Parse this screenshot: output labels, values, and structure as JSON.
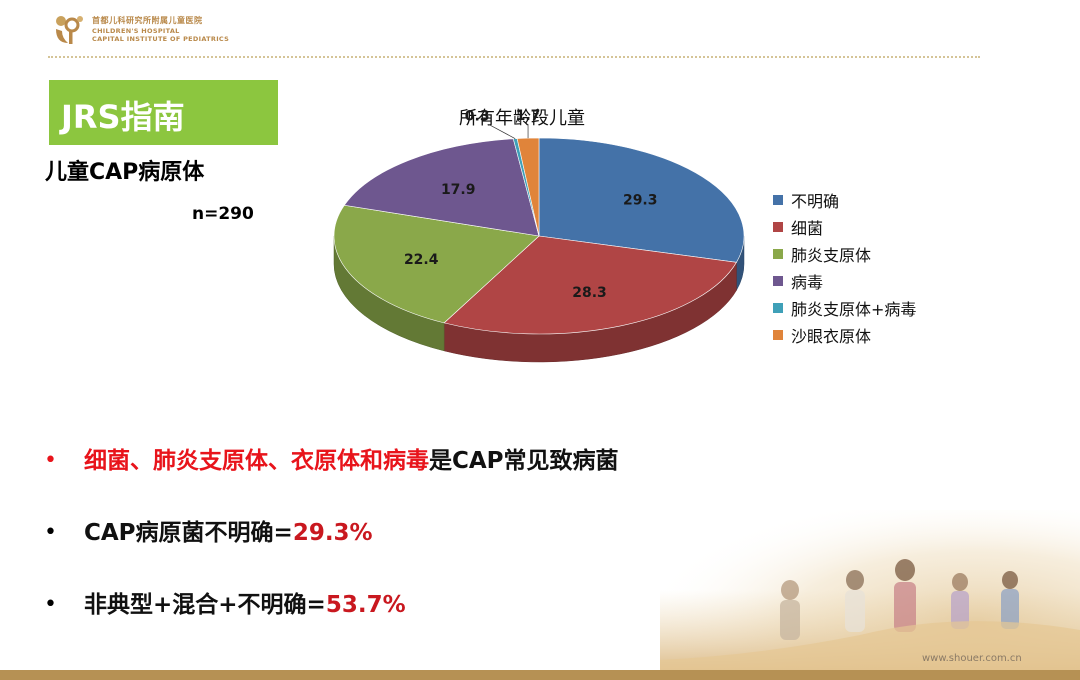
{
  "header": {
    "logo_cn": "首都儿科研究所附属儿童医院",
    "logo_en_line1": "CHILDREN'S HOSPITAL",
    "logo_en_line2": "CAPITAL INSTITUTE OF PEDIATRICS"
  },
  "title": "JRS指南",
  "subtitle": "儿童CAP病原体",
  "n_label": "n=290",
  "colors": {
    "title_box": "#8cc63f",
    "brand_gold": "#b69154",
    "highlight_red": "#e8141b"
  },
  "chart_data": {
    "type": "pie",
    "title": "所有年龄段儿童",
    "legend_position": "right",
    "three_d": true,
    "slices": [
      {
        "label": "不明确",
        "value": 29.3,
        "color": "#4472a8"
      },
      {
        "label": "细菌",
        "value": 28.3,
        "color": "#b04545"
      },
      {
        "label": "肺炎支原体",
        "value": 22.4,
        "color": "#8aa84a"
      },
      {
        "label": "病毒",
        "value": 17.9,
        "color": "#6e578f"
      },
      {
        "label": "肺炎支原体+病毒",
        "value": 0.3,
        "color": "#3fa0b8"
      },
      {
        "label": "沙眼衣原体",
        "value": 1.7,
        "color": "#e0843a"
      }
    ]
  },
  "bullets": [
    {
      "part1": "细菌、肺炎支原体、衣原体和病毒",
      "part2": "是CAP常见致病菌"
    },
    {
      "part1": "CAP病原菌不明确=",
      "part2": "29.3%"
    },
    {
      "part1": "非典型+混合+不明确=",
      "part2": "53.7%"
    }
  ],
  "bullet_symbol": "•",
  "watermark": "www.shouer.com.cn"
}
